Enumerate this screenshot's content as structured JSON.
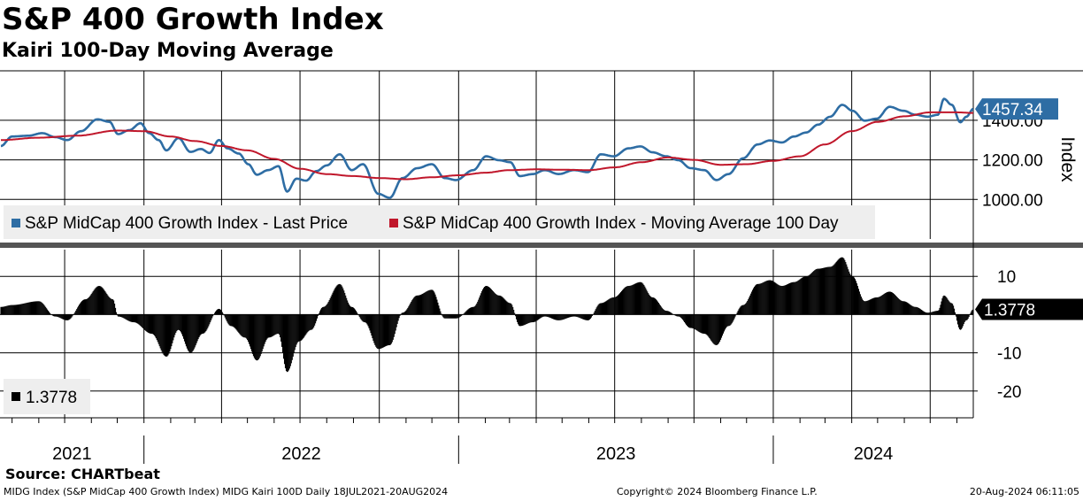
{
  "header": {
    "title": "S&P 400 Growth Index",
    "subtitle": "Kairi 100-Day Moving Average"
  },
  "footer": {
    "source": "Source: CHARTbeat",
    "description": "MIDG Index (S&P MidCap 400 Growth Index) MIDG Kairi 100D  Daily 18JUL2021-20AUG2024",
    "copyright": "Copyright© 2024 Bloomberg Finance L.P.",
    "timestamp": "20-Aug-2024 06:11:05"
  },
  "colors": {
    "price": "#2e6da4",
    "moving_average": "#c0172b",
    "kairi": "#000000",
    "legend_bg": "#eeeeee"
  },
  "chart_data": [
    {
      "type": "line",
      "panel": "upper",
      "y_axis_title": "Index",
      "ylim": [
        800,
        1650
      ],
      "y_ticks": [
        1000,
        1200,
        1400
      ],
      "y_tick_labels": [
        "1000.00",
        "1200.00",
        "1400.00"
      ],
      "grid": true,
      "x_range": [
        "2021-07-18",
        "2024-08-20"
      ],
      "x_axis_labels": [
        "2021",
        "2022",
        "2023",
        "2024"
      ],
      "legend_position": "bottom-left",
      "last_value_label": "1457.34",
      "series": [
        {
          "name": "S&P MidCap 400 Growth Index - Last Price",
          "color": "#2e6da4",
          "points": [
            [
              "2021-07-19",
              1270
            ],
            [
              "2021-08-01",
              1318
            ],
            [
              "2021-08-20",
              1322
            ],
            [
              "2021-09-05",
              1335
            ],
            [
              "2021-09-20",
              1315
            ],
            [
              "2021-10-04",
              1300
            ],
            [
              "2021-10-20",
              1345
            ],
            [
              "2021-11-08",
              1405
            ],
            [
              "2021-11-22",
              1392
            ],
            [
              "2021-12-02",
              1330
            ],
            [
              "2021-12-15",
              1350
            ],
            [
              "2021-12-28",
              1385
            ],
            [
              "2022-01-07",
              1335
            ],
            [
              "2022-01-18",
              1300
            ],
            [
              "2022-01-27",
              1248
            ],
            [
              "2022-02-10",
              1310
            ],
            [
              "2022-02-24",
              1240
            ],
            [
              "2022-03-08",
              1255
            ],
            [
              "2022-03-18",
              1235
            ],
            [
              "2022-03-29",
              1300
            ],
            [
              "2022-04-08",
              1258
            ],
            [
              "2022-04-21",
              1232
            ],
            [
              "2022-05-02",
              1178
            ],
            [
              "2022-05-12",
              1125
            ],
            [
              "2022-05-25",
              1148
            ],
            [
              "2022-06-06",
              1168
            ],
            [
              "2022-06-16",
              1040
            ],
            [
              "2022-06-27",
              1105
            ],
            [
              "2022-07-08",
              1095
            ],
            [
              "2022-07-20",
              1143
            ],
            [
              "2022-08-01",
              1172
            ],
            [
              "2022-08-16",
              1228
            ],
            [
              "2022-08-30",
              1148
            ],
            [
              "2022-09-12",
              1178
            ],
            [
              "2022-09-30",
              1028
            ],
            [
              "2022-10-13",
              1008
            ],
            [
              "2022-10-28",
              1108
            ],
            [
              "2022-11-14",
              1158
            ],
            [
              "2022-12-01",
              1178
            ],
            [
              "2022-12-16",
              1108
            ],
            [
              "2022-12-29",
              1098
            ],
            [
              "2023-01-18",
              1148
            ],
            [
              "2023-02-02",
              1218
            ],
            [
              "2023-02-17",
              1198
            ],
            [
              "2023-03-02",
              1188
            ],
            [
              "2023-03-13",
              1118
            ],
            [
              "2023-03-28",
              1128
            ],
            [
              "2023-04-11",
              1148
            ],
            [
              "2023-04-27",
              1128
            ],
            [
              "2023-05-15",
              1148
            ],
            [
              "2023-05-31",
              1138
            ],
            [
              "2023-06-15",
              1228
            ],
            [
              "2023-06-30",
              1218
            ],
            [
              "2023-07-17",
              1258
            ],
            [
              "2023-07-31",
              1268
            ],
            [
              "2023-08-14",
              1238
            ],
            [
              "2023-08-30",
              1218
            ],
            [
              "2023-09-13",
              1198
            ],
            [
              "2023-09-27",
              1158
            ],
            [
              "2023-10-13",
              1148
            ],
            [
              "2023-10-27",
              1098
            ],
            [
              "2023-11-10",
              1128
            ],
            [
              "2023-11-27",
              1208
            ],
            [
              "2023-12-14",
              1278
            ],
            [
              "2023-12-28",
              1298
            ],
            [
              "2024-01-11",
              1288
            ],
            [
              "2024-01-25",
              1318
            ],
            [
              "2024-02-08",
              1338
            ],
            [
              "2024-02-22",
              1378
            ],
            [
              "2024-03-07",
              1418
            ],
            [
              "2024-03-21",
              1478
            ],
            [
              "2024-04-02",
              1448
            ],
            [
              "2024-04-16",
              1398
            ],
            [
              "2024-04-30",
              1408
            ],
            [
              "2024-05-15",
              1468
            ],
            [
              "2024-05-31",
              1448
            ],
            [
              "2024-06-14",
              1428
            ],
            [
              "2024-06-28",
              1418
            ],
            [
              "2024-07-10",
              1428
            ],
            [
              "2024-07-17",
              1508
            ],
            [
              "2024-07-26",
              1478
            ],
            [
              "2024-08-05",
              1390
            ],
            [
              "2024-08-12",
              1418
            ],
            [
              "2024-08-20",
              1457.34
            ]
          ]
        },
        {
          "name": "S&P MidCap 400 Growth Index - Moving Average 100 Day",
          "color": "#c0172b",
          "points": [
            [
              "2021-07-19",
              1300
            ],
            [
              "2021-09-01",
              1312
            ],
            [
              "2021-10-15",
              1322
            ],
            [
              "2021-12-01",
              1348
            ],
            [
              "2022-01-01",
              1345
            ],
            [
              "2022-02-01",
              1318
            ],
            [
              "2022-03-01",
              1295
            ],
            [
              "2022-04-01",
              1270
            ],
            [
              "2022-05-01",
              1248
            ],
            [
              "2022-06-01",
              1205
            ],
            [
              "2022-07-01",
              1155
            ],
            [
              "2022-08-01",
              1128
            ],
            [
              "2022-09-01",
              1118
            ],
            [
              "2022-10-01",
              1108
            ],
            [
              "2022-11-01",
              1102
            ],
            [
              "2022-12-01",
              1112
            ],
            [
              "2023-01-01",
              1122
            ],
            [
              "2023-02-01",
              1135
            ],
            [
              "2023-03-01",
              1148
            ],
            [
              "2023-04-01",
              1152
            ],
            [
              "2023-05-01",
              1150
            ],
            [
              "2023-06-01",
              1148
            ],
            [
              "2023-07-01",
              1162
            ],
            [
              "2023-08-01",
              1188
            ],
            [
              "2023-09-01",
              1212
            ],
            [
              "2023-10-01",
              1200
            ],
            [
              "2023-11-01",
              1175
            ],
            [
              "2023-12-01",
              1178
            ],
            [
              "2024-01-01",
              1195
            ],
            [
              "2024-02-01",
              1218
            ],
            [
              "2024-03-01",
              1278
            ],
            [
              "2024-04-01",
              1345
            ],
            [
              "2024-05-01",
              1392
            ],
            [
              "2024-06-01",
              1420
            ],
            [
              "2024-07-01",
              1440
            ],
            [
              "2024-08-01",
              1440
            ],
            [
              "2024-08-20",
              1437
            ]
          ]
        }
      ]
    },
    {
      "type": "bar",
      "panel": "lower",
      "ylim": [
        -27,
        17
      ],
      "y_ticks": [
        -20,
        -10,
        10
      ],
      "y_tick_labels": [
        "-20",
        "-10",
        "10"
      ],
      "grid": true,
      "x_range": [
        "2021-07-18",
        "2024-08-20"
      ],
      "legend_position": "bottom-left",
      "last_value_label": "1.3778",
      "series": [
        {
          "name": "1.3778",
          "color": "#000000",
          "points": [
            [
              "2021-07-19",
              2
            ],
            [
              "2021-08-01",
              2.5
            ],
            [
              "2021-09-01",
              3.5
            ],
            [
              "2021-09-20",
              -0.5
            ],
            [
              "2021-10-04",
              -1.5
            ],
            [
              "2021-10-25",
              4
            ],
            [
              "2021-11-10",
              7.5
            ],
            [
              "2021-11-26",
              4
            ],
            [
              "2021-12-02",
              -0.5
            ],
            [
              "2021-12-20",
              -2
            ],
            [
              "2022-01-10",
              -5
            ],
            [
              "2022-01-27",
              -11
            ],
            [
              "2022-02-10",
              -4
            ],
            [
              "2022-02-24",
              -10
            ],
            [
              "2022-03-10",
              -5
            ],
            [
              "2022-03-29",
              1.5
            ],
            [
              "2022-04-12",
              -3
            ],
            [
              "2022-04-28",
              -6
            ],
            [
              "2022-05-12",
              -12
            ],
            [
              "2022-05-26",
              -6
            ],
            [
              "2022-06-06",
              -5
            ],
            [
              "2022-06-16",
              -15
            ],
            [
              "2022-06-30",
              -7
            ],
            [
              "2022-07-14",
              -4
            ],
            [
              "2022-07-28",
              2
            ],
            [
              "2022-08-16",
              8
            ],
            [
              "2022-08-30",
              2
            ],
            [
              "2022-09-14",
              -2
            ],
            [
              "2022-09-30",
              -9
            ],
            [
              "2022-10-13",
              -8
            ],
            [
              "2022-10-28",
              0.5
            ],
            [
              "2022-11-14",
              5
            ],
            [
              "2022-12-01",
              6.5
            ],
            [
              "2022-12-16",
              -1
            ],
            [
              "2022-12-29",
              -1
            ],
            [
              "2023-01-18",
              2
            ],
            [
              "2023-02-02",
              7.5
            ],
            [
              "2023-02-17",
              5
            ],
            [
              "2023-03-02",
              3
            ],
            [
              "2023-03-13",
              -3
            ],
            [
              "2023-03-28",
              -2
            ],
            [
              "2023-04-11",
              -0.5
            ],
            [
              "2023-04-27",
              -1.5
            ],
            [
              "2023-05-15",
              -0.5
            ],
            [
              "2023-05-31",
              -1.5
            ],
            [
              "2023-06-15",
              3
            ],
            [
              "2023-06-30",
              4.5
            ],
            [
              "2023-07-17",
              7.5
            ],
            [
              "2023-07-31",
              8.5
            ],
            [
              "2023-08-14",
              4.5
            ],
            [
              "2023-08-30",
              1
            ],
            [
              "2023-09-13",
              -0.5
            ],
            [
              "2023-09-27",
              -3.5
            ],
            [
              "2023-10-13",
              -5
            ],
            [
              "2023-10-27",
              -8
            ],
            [
              "2023-11-10",
              -3
            ],
            [
              "2023-11-27",
              2.5
            ],
            [
              "2023-12-14",
              8
            ],
            [
              "2023-12-28",
              9
            ],
            [
              "2024-01-11",
              7.5
            ],
            [
              "2024-01-25",
              8.5
            ],
            [
              "2024-02-08",
              10
            ],
            [
              "2024-02-22",
              12
            ],
            [
              "2024-03-07",
              12.5
            ],
            [
              "2024-03-21",
              15
            ],
            [
              "2024-04-02",
              10
            ],
            [
              "2024-04-16",
              3.5
            ],
            [
              "2024-04-30",
              4.5
            ],
            [
              "2024-05-15",
              6
            ],
            [
              "2024-05-31",
              3.5
            ],
            [
              "2024-06-14",
              2
            ],
            [
              "2024-06-28",
              0.5
            ],
            [
              "2024-07-10",
              1
            ],
            [
              "2024-07-17",
              5
            ],
            [
              "2024-07-26",
              3
            ],
            [
              "2024-08-05",
              -4
            ],
            [
              "2024-08-12",
              -1.5
            ],
            [
              "2024-08-20",
              1.3778
            ]
          ]
        }
      ]
    }
  ]
}
